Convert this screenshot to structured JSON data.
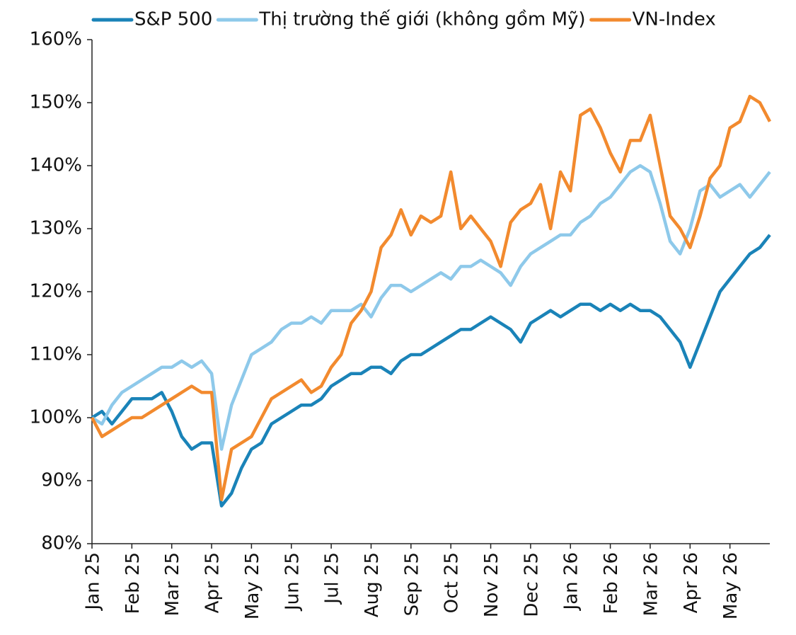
{
  "chart_data": {
    "type": "line",
    "categories": [
      "Jan 25",
      null,
      null,
      null,
      "Feb 25",
      null,
      null,
      null,
      "Mar 25",
      null,
      null,
      null,
      "Apr 25",
      null,
      null,
      null,
      "May 25",
      null,
      null,
      null,
      "Jun 25",
      null,
      null,
      null,
      "Jul 25",
      null,
      null,
      null,
      "Aug 25",
      null,
      null,
      null,
      "Sep 25",
      null,
      null,
      null,
      "Oct 25",
      null,
      null,
      null,
      "Nov 25",
      null,
      null,
      null,
      "Dec 25",
      null,
      null,
      null,
      "Jan 26",
      null,
      null,
      null,
      "Feb 26",
      null,
      null,
      null,
      "Mar 26",
      null,
      null,
      null,
      "Apr 26",
      null,
      null,
      null,
      "May 26",
      null,
      null,
      null,
      null
    ],
    "series": [
      {
        "name": "S&P 500",
        "color": "#1a83b8",
        "values": [
          100,
          101,
          99,
          101,
          103,
          103,
          103,
          104,
          101,
          97,
          95,
          96,
          96,
          86,
          88,
          92,
          95,
          96,
          99,
          100,
          101,
          102,
          102,
          103,
          105,
          106,
          107,
          107,
          108,
          108,
          107,
          109,
          110,
          110,
          111,
          112,
          113,
          114,
          114,
          115,
          116,
          115,
          114,
          112,
          115,
          116,
          117,
          116,
          117,
          118,
          118,
          117,
          118,
          117,
          118,
          117,
          117,
          116,
          114,
          112,
          108,
          112,
          116,
          120,
          122,
          124,
          126,
          127,
          129
        ]
      },
      {
        "name": "Thị trường thế giới (không gồm Mỹ)",
        "color": "#8ec9ea",
        "values": [
          100,
          99,
          102,
          104,
          105,
          106,
          107,
          108,
          108,
          109,
          108,
          109,
          107,
          95,
          102,
          106,
          110,
          111,
          112,
          114,
          115,
          115,
          116,
          115,
          117,
          117,
          117,
          118,
          116,
          119,
          121,
          121,
          120,
          121,
          122,
          123,
          122,
          124,
          124,
          125,
          124,
          123,
          121,
          124,
          126,
          127,
          128,
          129,
          129,
          131,
          132,
          134,
          135,
          137,
          139,
          140,
          139,
          134,
          128,
          126,
          130,
          136,
          137,
          135,
          136,
          137,
          135,
          137,
          139
        ]
      },
      {
        "name": "VN-Index",
        "color": "#f28a2e",
        "values": [
          100,
          97,
          98,
          99,
          100,
          100,
          101,
          102,
          103,
          104,
          105,
          104,
          104,
          87,
          95,
          96,
          97,
          100,
          103,
          104,
          105,
          106,
          104,
          105,
          108,
          110,
          115,
          117,
          120,
          127,
          129,
          133,
          129,
          132,
          131,
          132,
          139,
          130,
          132,
          130,
          128,
          124,
          131,
          133,
          134,
          137,
          130,
          139,
          136,
          148,
          149,
          146,
          142,
          139,
          144,
          144,
          148,
          140,
          132,
          130,
          127,
          132,
          138,
          140,
          146,
          147,
          151,
          150,
          147
        ]
      }
    ],
    "ylim": [
      80,
      160
    ],
    "yticks": [
      {
        "value": 80,
        "label": "80%"
      },
      {
        "value": 90,
        "label": "90%"
      },
      {
        "value": 100,
        "label": "100%"
      },
      {
        "value": 110,
        "label": "110%"
      },
      {
        "value": 120,
        "label": "120%"
      },
      {
        "value": 130,
        "label": "130%"
      },
      {
        "value": 140,
        "label": "140%"
      },
      {
        "value": 150,
        "label": "150%"
      },
      {
        "value": 160,
        "label": "160%"
      }
    ],
    "legend": "top",
    "grid": false
  }
}
